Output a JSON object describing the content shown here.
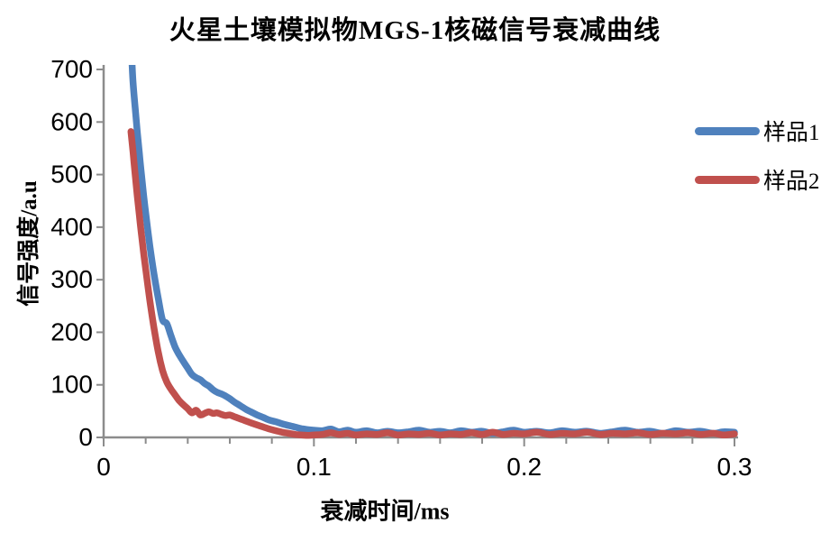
{
  "chart_data": {
    "type": "line",
    "title": "火星土壤模拟物MGS-1核磁信号衰减曲线",
    "xlabel": "衰减时间/ms",
    "ylabel": "信号强度/a.u",
    "xlim": [
      0,
      0.3
    ],
    "ylim": [
      0,
      700
    ],
    "x_ticks": [
      0,
      0.1,
      0.2,
      0.3
    ],
    "x_tick_labels": [
      "0",
      "0.1",
      "0.2",
      "0.3"
    ],
    "x_minor_tick_step": 0.02,
    "y_ticks": [
      0,
      100,
      200,
      300,
      400,
      500,
      600,
      700
    ],
    "y_tick_labels": [
      "0",
      "100",
      "200",
      "300",
      "400",
      "500",
      "600",
      "700"
    ],
    "grid": false,
    "legend_position": "right",
    "axis_color": "#8C8C8C",
    "series": [
      {
        "name": "样品1",
        "color": "#4F81BD",
        "points": [
          [
            0.0135,
            710
          ],
          [
            0.014,
            672
          ],
          [
            0.015,
            625
          ],
          [
            0.016,
            580
          ],
          [
            0.017,
            538
          ],
          [
            0.018,
            498
          ],
          [
            0.019,
            460
          ],
          [
            0.02,
            425
          ],
          [
            0.022,
            362
          ],
          [
            0.024,
            308
          ],
          [
            0.026,
            262
          ],
          [
            0.028,
            222
          ],
          [
            0.03,
            215
          ],
          [
            0.032,
            192
          ],
          [
            0.034,
            170
          ],
          [
            0.036,
            155
          ],
          [
            0.038,
            142
          ],
          [
            0.04,
            130
          ],
          [
            0.042,
            118
          ],
          [
            0.044,
            112
          ],
          [
            0.046,
            108
          ],
          [
            0.048,
            101
          ],
          [
            0.05,
            96
          ],
          [
            0.052,
            89
          ],
          [
            0.054,
            84
          ],
          [
            0.056,
            81
          ],
          [
            0.058,
            77
          ],
          [
            0.06,
            72
          ],
          [
            0.062,
            66
          ],
          [
            0.064,
            61
          ],
          [
            0.066,
            56
          ],
          [
            0.068,
            51
          ],
          [
            0.07,
            47
          ],
          [
            0.073,
            41
          ],
          [
            0.076,
            36
          ],
          [
            0.079,
            31
          ],
          [
            0.082,
            28
          ],
          [
            0.085,
            24
          ],
          [
            0.088,
            21
          ],
          [
            0.091,
            18
          ],
          [
            0.094,
            15
          ],
          [
            0.097,
            13
          ],
          [
            0.1,
            12
          ],
          [
            0.104,
            11
          ],
          [
            0.108,
            14
          ],
          [
            0.112,
            9
          ],
          [
            0.116,
            12
          ],
          [
            0.12,
            8
          ],
          [
            0.125,
            11
          ],
          [
            0.13,
            7
          ],
          [
            0.135,
            10
          ],
          [
            0.14,
            7
          ],
          [
            0.145,
            9
          ],
          [
            0.15,
            12
          ],
          [
            0.155,
            8
          ],
          [
            0.16,
            10
          ],
          [
            0.165,
            7
          ],
          [
            0.17,
            11
          ],
          [
            0.175,
            8
          ],
          [
            0.18,
            10
          ],
          [
            0.185,
            6
          ],
          [
            0.19,
            9
          ],
          [
            0.195,
            12
          ],
          [
            0.2,
            8
          ],
          [
            0.206,
            10
          ],
          [
            0.212,
            7
          ],
          [
            0.218,
            11
          ],
          [
            0.224,
            8
          ],
          [
            0.23,
            10
          ],
          [
            0.236,
            6
          ],
          [
            0.242,
            9
          ],
          [
            0.248,
            12
          ],
          [
            0.254,
            8
          ],
          [
            0.26,
            10
          ],
          [
            0.266,
            6
          ],
          [
            0.272,
            11
          ],
          [
            0.278,
            8
          ],
          [
            0.284,
            10
          ],
          [
            0.29,
            6
          ],
          [
            0.295,
            9
          ],
          [
            0.3,
            8
          ]
        ]
      },
      {
        "name": "样品2",
        "color": "#C0504D",
        "points": [
          [
            0.013,
            580
          ],
          [
            0.014,
            540
          ],
          [
            0.015,
            498
          ],
          [
            0.016,
            458
          ],
          [
            0.017,
            420
          ],
          [
            0.018,
            384
          ],
          [
            0.019,
            350
          ],
          [
            0.02,
            318
          ],
          [
            0.022,
            258
          ],
          [
            0.024,
            205
          ],
          [
            0.026,
            160
          ],
          [
            0.028,
            126
          ],
          [
            0.03,
            104
          ],
          [
            0.032,
            90
          ],
          [
            0.034,
            79
          ],
          [
            0.036,
            68
          ],
          [
            0.038,
            60
          ],
          [
            0.04,
            53
          ],
          [
            0.042,
            45
          ],
          [
            0.044,
            50
          ],
          [
            0.046,
            41
          ],
          [
            0.048,
            44
          ],
          [
            0.05,
            47
          ],
          [
            0.052,
            44
          ],
          [
            0.054,
            45
          ],
          [
            0.056,
            42
          ],
          [
            0.058,
            40
          ],
          [
            0.06,
            41
          ],
          [
            0.062,
            38
          ],
          [
            0.064,
            35
          ],
          [
            0.066,
            32
          ],
          [
            0.068,
            29
          ],
          [
            0.07,
            26
          ],
          [
            0.073,
            22
          ],
          [
            0.076,
            18
          ],
          [
            0.079,
            14
          ],
          [
            0.082,
            11
          ],
          [
            0.085,
            8
          ],
          [
            0.088,
            6
          ],
          [
            0.091,
            4
          ],
          [
            0.094,
            3
          ],
          [
            0.097,
            2
          ],
          [
            0.1,
            3
          ],
          [
            0.104,
            4
          ],
          [
            0.108,
            7
          ],
          [
            0.112,
            4
          ],
          [
            0.116,
            6
          ],
          [
            0.12,
            3
          ],
          [
            0.125,
            5
          ],
          [
            0.13,
            4
          ],
          [
            0.135,
            7
          ],
          [
            0.14,
            3
          ],
          [
            0.145,
            5
          ],
          [
            0.15,
            4
          ],
          [
            0.155,
            6
          ],
          [
            0.16,
            3
          ],
          [
            0.165,
            5
          ],
          [
            0.17,
            4
          ],
          [
            0.175,
            7
          ],
          [
            0.18,
            4
          ],
          [
            0.185,
            8
          ],
          [
            0.19,
            4
          ],
          [
            0.195,
            6
          ],
          [
            0.2,
            5
          ],
          [
            0.206,
            8
          ],
          [
            0.212,
            4
          ],
          [
            0.218,
            6
          ],
          [
            0.224,
            5
          ],
          [
            0.23,
            8
          ],
          [
            0.236,
            4
          ],
          [
            0.242,
            6
          ],
          [
            0.248,
            5
          ],
          [
            0.254,
            7
          ],
          [
            0.26,
            4
          ],
          [
            0.266,
            6
          ],
          [
            0.272,
            5
          ],
          [
            0.278,
            7
          ],
          [
            0.284,
            4
          ],
          [
            0.29,
            6
          ],
          [
            0.295,
            3
          ],
          [
            0.3,
            5
          ]
        ]
      }
    ]
  }
}
